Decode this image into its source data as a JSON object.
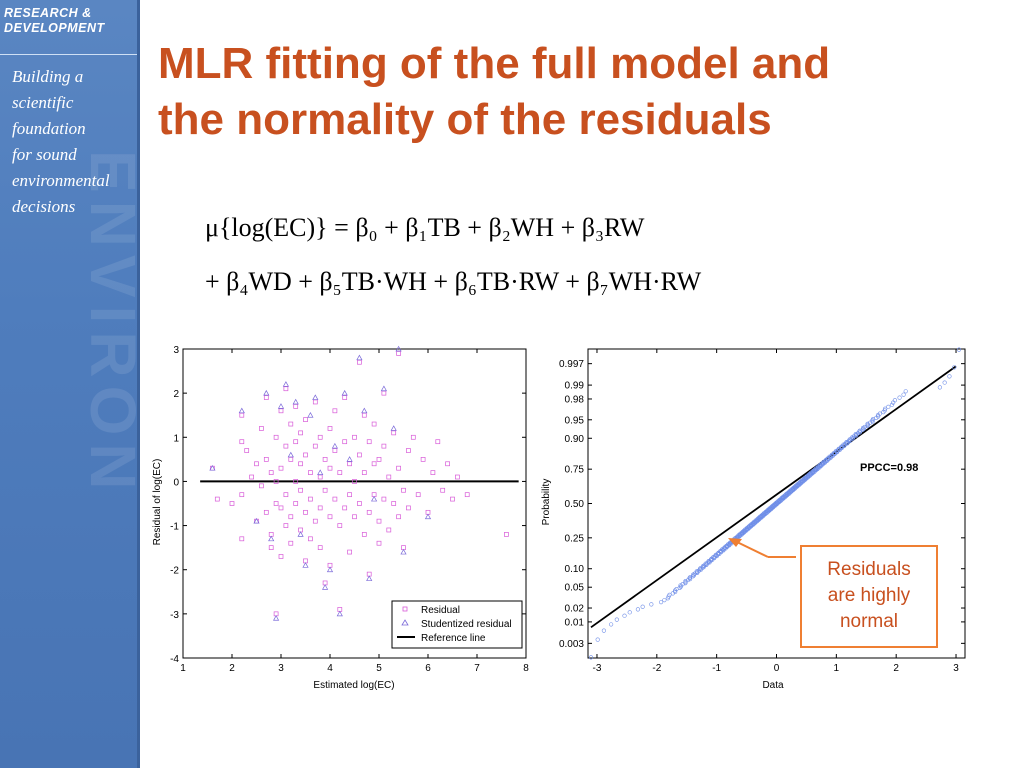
{
  "sidebar": {
    "tag_lines": [
      "RESEARCH &",
      "DEVELOPMENT"
    ],
    "mission_lines": [
      "Building a",
      "scientific",
      "foundation",
      "for sound",
      "environmental",
      "decisions"
    ],
    "watermark": "ENVIRON"
  },
  "title_lines": [
    "MLR fitting of the full model and",
    "the normality of the residuals"
  ],
  "equation": {
    "line1": "μ{log(EC)} = β₀ + β₁TB + β₂WH + β₃RW",
    "line2": "+ β₄WD + β₅TB·WH + β₆TB·RW + β₇WH·RW"
  },
  "callout": {
    "lines": [
      "Residuals",
      "are highly",
      "normal"
    ]
  },
  "colors": {
    "title": "#c8501f",
    "callout_border": "#ef7f32",
    "residual": "#d85ad8",
    "studentized": "#7b6ad9",
    "probability_points": "#6f8ee8",
    "sidebar": "#5a86c2"
  },
  "chart_data": [
    {
      "type": "scatter",
      "title": "",
      "xlabel": "Estimated log(EC)",
      "ylabel": "Residual of log(EC)",
      "xlim": [
        1,
        8
      ],
      "ylim": [
        -4,
        3
      ],
      "xticks": [
        1,
        2,
        3,
        4,
        5,
        6,
        7,
        8
      ],
      "yticks": [
        -4,
        -3,
        -2,
        -1,
        0,
        1,
        2,
        3
      ],
      "legend": {
        "position": "bottom-right",
        "entries": [
          "Residual",
          "Studentized residual",
          "Reference line"
        ]
      },
      "reference_line": {
        "y": 0,
        "x_range": [
          1.35,
          7.85
        ]
      },
      "series": [
        {
          "name": "Residual",
          "marker": "square",
          "points": [
            [
              1.6,
              0.3
            ],
            [
              1.7,
              -0.4
            ],
            [
              2.0,
              -0.5
            ],
            [
              2.2,
              -0.3
            ],
            [
              2.2,
              1.5
            ],
            [
              2.2,
              0.9
            ],
            [
              2.2,
              -1.3
            ],
            [
              2.3,
              0.7
            ],
            [
              2.4,
              0.1
            ],
            [
              2.5,
              0.4
            ],
            [
              2.5,
              -0.9
            ],
            [
              2.6,
              1.2
            ],
            [
              2.6,
              -0.1
            ],
            [
              2.7,
              1.9
            ],
            [
              2.7,
              -0.7
            ],
            [
              2.7,
              0.5
            ],
            [
              2.8,
              -1.5
            ],
            [
              2.8,
              0.2
            ],
            [
              2.8,
              -1.2
            ],
            [
              2.9,
              1.0
            ],
            [
              2.9,
              0.0
            ],
            [
              2.9,
              -0.5
            ],
            [
              2.9,
              -3.0
            ],
            [
              3.0,
              1.6
            ],
            [
              3.0,
              0.3
            ],
            [
              3.0,
              -0.6
            ],
            [
              3.0,
              -1.7
            ],
            [
              3.1,
              0.8
            ],
            [
              3.1,
              -0.3
            ],
            [
              3.1,
              -1.0
            ],
            [
              3.1,
              2.1
            ],
            [
              3.2,
              0.5
            ],
            [
              3.2,
              -0.8
            ],
            [
              3.2,
              1.3
            ],
            [
              3.2,
              -1.4
            ],
            [
              3.3,
              0.0
            ],
            [
              3.3,
              1.7
            ],
            [
              3.3,
              -0.5
            ],
            [
              3.3,
              0.9
            ],
            [
              3.4,
              -1.1
            ],
            [
              3.4,
              0.4
            ],
            [
              3.4,
              -0.2
            ],
            [
              3.4,
              1.1
            ],
            [
              3.5,
              -0.7
            ],
            [
              3.5,
              0.6
            ],
            [
              3.5,
              -1.8
            ],
            [
              3.5,
              1.4
            ],
            [
              3.6,
              0.2
            ],
            [
              3.6,
              -0.4
            ],
            [
              3.6,
              -1.3
            ],
            [
              3.7,
              0.8
            ],
            [
              3.7,
              -0.9
            ],
            [
              3.7,
              1.8
            ],
            [
              3.8,
              0.1
            ],
            [
              3.8,
              -0.6
            ],
            [
              3.8,
              -1.5
            ],
            [
              3.8,
              1.0
            ],
            [
              3.9,
              0.5
            ],
            [
              3.9,
              -0.2
            ],
            [
              3.9,
              -2.3
            ],
            [
              4.0,
              1.2
            ],
            [
              4.0,
              -0.8
            ],
            [
              4.0,
              0.3
            ],
            [
              4.0,
              -1.9
            ],
            [
              4.1,
              0.7
            ],
            [
              4.1,
              -0.4
            ],
            [
              4.1,
              1.6
            ],
            [
              4.2,
              -1.0
            ],
            [
              4.2,
              0.2
            ],
            [
              4.2,
              -2.9
            ],
            [
              4.3,
              0.9
            ],
            [
              4.3,
              -0.6
            ],
            [
              4.3,
              1.9
            ],
            [
              4.4,
              -0.3
            ],
            [
              4.4,
              0.4
            ],
            [
              4.4,
              -1.6
            ],
            [
              4.5,
              1.0
            ],
            [
              4.5,
              -0.8
            ],
            [
              4.5,
              0.0
            ],
            [
              4.6,
              2.7
            ],
            [
              4.6,
              -0.5
            ],
            [
              4.6,
              0.6
            ],
            [
              4.7,
              -1.2
            ],
            [
              4.7,
              1.5
            ],
            [
              4.7,
              0.2
            ],
            [
              4.8,
              -0.7
            ],
            [
              4.8,
              0.9
            ],
            [
              4.8,
              -2.1
            ],
            [
              4.9,
              0.4
            ],
            [
              4.9,
              -0.3
            ],
            [
              4.9,
              1.3
            ],
            [
              5.0,
              -0.9
            ],
            [
              5.0,
              0.5
            ],
            [
              5.0,
              -1.4
            ],
            [
              5.1,
              2.0
            ],
            [
              5.1,
              -0.4
            ],
            [
              5.1,
              0.8
            ],
            [
              5.2,
              -1.1
            ],
            [
              5.2,
              0.1
            ],
            [
              5.3,
              -0.5
            ],
            [
              5.3,
              1.1
            ],
            [
              5.4,
              -0.8
            ],
            [
              5.4,
              2.9
            ],
            [
              5.4,
              0.3
            ],
            [
              5.5,
              -0.2
            ],
            [
              5.5,
              -1.5
            ],
            [
              5.6,
              0.7
            ],
            [
              5.6,
              -0.6
            ],
            [
              5.7,
              1.0
            ],
            [
              5.8,
              -0.3
            ],
            [
              5.9,
              0.5
            ],
            [
              6.0,
              -0.7
            ],
            [
              6.1,
              0.2
            ],
            [
              6.2,
              0.9
            ],
            [
              6.3,
              -0.2
            ],
            [
              6.4,
              0.4
            ],
            [
              6.5,
              -0.4
            ],
            [
              6.6,
              0.1
            ],
            [
              6.8,
              -0.3
            ],
            [
              7.6,
              -1.2
            ]
          ]
        },
        {
          "name": "Studentized residual",
          "marker": "triangle",
          "points": [
            [
              1.6,
              0.3
            ],
            [
              2.2,
              1.6
            ],
            [
              2.5,
              -0.9
            ],
            [
              2.7,
              2.0
            ],
            [
              2.9,
              -3.1
            ],
            [
              3.0,
              1.7
            ],
            [
              3.1,
              2.2
            ],
            [
              3.3,
              1.8
            ],
            [
              3.5,
              -1.9
            ],
            [
              3.6,
              1.5
            ],
            [
              3.7,
              1.9
            ],
            [
              3.9,
              -2.4
            ],
            [
              4.0,
              -2.0
            ],
            [
              4.2,
              -3.0
            ],
            [
              4.3,
              2.0
            ],
            [
              4.6,
              2.8
            ],
            [
              4.8,
              -2.2
            ],
            [
              5.1,
              2.1
            ],
            [
              5.4,
              3.0
            ],
            [
              5.5,
              -1.6
            ],
            [
              3.2,
              0.6
            ],
            [
              3.8,
              0.2
            ],
            [
              4.4,
              0.5
            ],
            [
              4.9,
              -0.4
            ],
            [
              5.3,
              1.2
            ],
            [
              6.0,
              -0.8
            ],
            [
              2.8,
              -1.3
            ],
            [
              3.4,
              -1.2
            ],
            [
              4.1,
              0.8
            ],
            [
              4.7,
              1.6
            ]
          ]
        }
      ]
    },
    {
      "type": "scatter",
      "title": "",
      "xlabel": "Data",
      "ylabel": "Probability",
      "xlim": [
        -3.15,
        3.15
      ],
      "xticks": [
        -3,
        -2,
        -1,
        0,
        1,
        2,
        3
      ],
      "yscale": "normal-probability",
      "ytick_labels": [
        "0.003",
        "0.01",
        "0.02",
        "0.05",
        "0.10",
        "0.25",
        "0.50",
        "0.75",
        "0.90",
        "0.95",
        "0.98",
        "0.99",
        "0.997"
      ],
      "ytick_values": [
        0.003,
        0.01,
        0.02,
        0.05,
        0.1,
        0.25,
        0.5,
        0.75,
        0.9,
        0.95,
        0.98,
        0.99,
        0.997
      ],
      "annotation": "PPCC=0.98",
      "reference_line": {
        "x": [
          -3.1,
          3.0
        ],
        "probability": [
          0.0075,
          0.9965
        ]
      },
      "series": [
        {
          "marker": "circle",
          "n_points": 400,
          "points_range": {
            "min": -3.1,
            "max": 3.05
          }
        }
      ]
    }
  ]
}
